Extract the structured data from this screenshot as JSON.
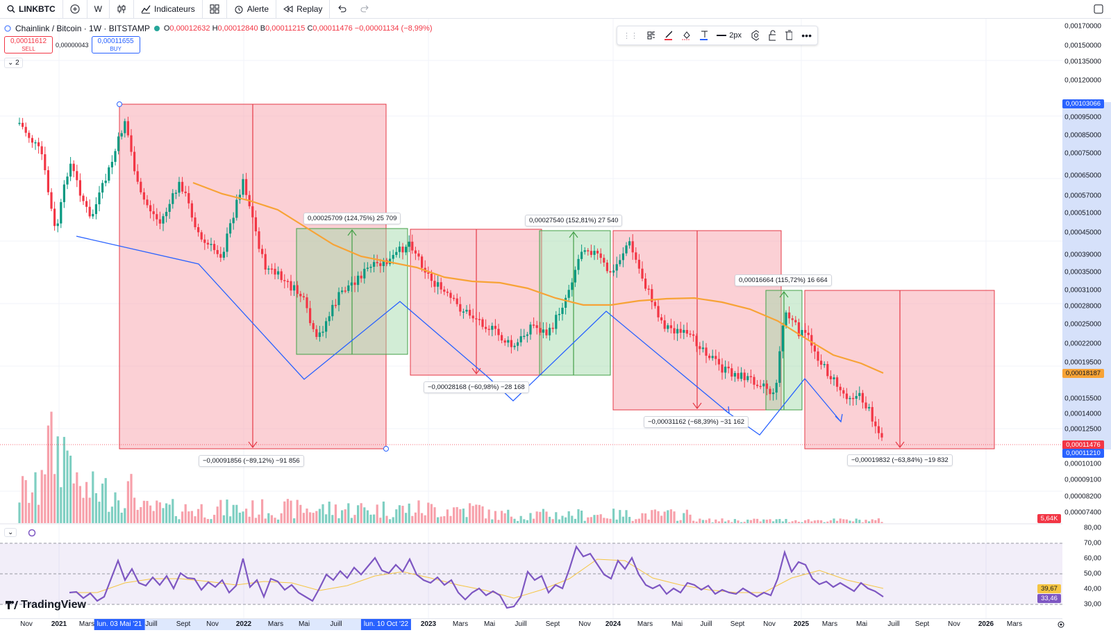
{
  "toolbar": {
    "symbol": "LINKBTC",
    "interval": "W",
    "indicators_label": "Indicateurs",
    "alert_label": "Alerte",
    "replay_label": "Replay"
  },
  "legend": {
    "title": "Chainlink / Bitcoin · 1W · BITSTAMP",
    "open_label": "O",
    "open": "0,00012632",
    "high_label": "H",
    "high": "0,00012840",
    "low_label": "B",
    "low": "0,00011215",
    "close_label": "C",
    "close": "0,00011476",
    "change": "−0,00001134 (−8,99%)",
    "sell_price": "0,00011612",
    "sell_label": "SELL",
    "spread": "0,00000043",
    "buy_price": "0,00011655",
    "buy_label": "BUY",
    "count": "2"
  },
  "drawing_toolbar": {
    "width_label": "2px"
  },
  "price_axis": {
    "ticks": [
      "0,00170000",
      "0,00150000",
      "0,00135000",
      "0,00120000",
      "0,00095000",
      "0,00085000",
      "0,00075000",
      "0,00065000",
      "0,00057000",
      "0,00051000",
      "0,00045000",
      "0,00039000",
      "0,00035000",
      "0,00031000",
      "0,00028000",
      "0,00025000",
      "0,00022000",
      "0,00019500",
      "0,00015500",
      "0,00014000",
      "0,00012500",
      "0,00010100",
      "0,00009100",
      "0,00008200",
      "0,00007400"
    ],
    "tag_top": "0,00103066",
    "tag_ma": "0,00018187",
    "tag_last": "0,00011476",
    "tag_low": "0,00011210",
    "tag_volume": "5,64K"
  },
  "rsi_axis": {
    "ticks": [
      "80,00",
      "70,00",
      "60,00",
      "50,00",
      "40,00",
      "30,00"
    ],
    "tag_ma": "39,67",
    "tag_rsi": "33,46"
  },
  "time_axis": {
    "ticks": [
      "Nov",
      "2021",
      "Mars",
      "Juill",
      "Sept",
      "Nov",
      "2022",
      "Mars",
      "Mai",
      "Juill",
      "2023",
      "Mars",
      "Mai",
      "Juill",
      "Sept",
      "Nov",
      "2024",
      "Mars",
      "Mai",
      "Juill",
      "Sept",
      "Nov",
      "2025",
      "Mars",
      "Mai",
      "Juill",
      "Sept",
      "Nov",
      "2026",
      "Mars"
    ],
    "highlight_start": "lun. 03 Mai '21",
    "highlight_end": "lun. 10 Oct '22"
  },
  "annotations": {
    "range1": "−0,00091856 (−89,12%) −91 856",
    "range2": "0,00025709 (124,75%) 25 709",
    "range3": "−0,00028168 (−60,98%) −28 168",
    "range4": "0,00027540 (152,81%) 27 540",
    "range5": "−0,00031162 (−68,39%) −31 162",
    "range6": "0,00016664 (115,72%) 16 664",
    "range7": "−0,00019832 (−63,84%) −19 832"
  },
  "branding": {
    "name": "TradingView"
  },
  "colors": {
    "bear_zone": "#f7a1ab",
    "bull_zone": "#a8dcae",
    "up_candle": "#089981",
    "down_candle": "#f23645",
    "ma": "#f7a336",
    "rsi": "#7e57c2",
    "zigzag": "#2962ff"
  }
}
